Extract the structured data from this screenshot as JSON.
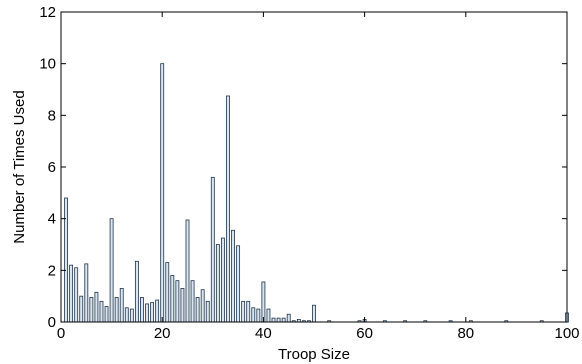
{
  "chart_data": {
    "type": "bar",
    "xlabel": "Troop Size",
    "ylabel": "Number of Times Used",
    "xlim": [
      0,
      100
    ],
    "ylim": [
      0,
      12
    ],
    "xticks": [
      0,
      20,
      40,
      60,
      80,
      100
    ],
    "yticks": [
      0,
      2,
      4,
      6,
      8,
      10,
      12
    ],
    "xtick_labels": [
      "0",
      "20",
      "40",
      "60",
      "80",
      "100"
    ],
    "ytick_labels": [
      "0",
      "2",
      "4",
      "6",
      "8",
      "10",
      "12"
    ],
    "grid": false,
    "bar_fill": "#d9e6f2",
    "bar_stroke": "#1f3348",
    "x": [
      1,
      2,
      3,
      4,
      5,
      6,
      7,
      8,
      9,
      10,
      11,
      12,
      13,
      14,
      15,
      16,
      17,
      18,
      19,
      20,
      21,
      22,
      23,
      24,
      25,
      26,
      27,
      28,
      29,
      30,
      31,
      32,
      33,
      34,
      35,
      36,
      37,
      38,
      39,
      40,
      41,
      42,
      43,
      44,
      45,
      46,
      47,
      48,
      49,
      50,
      51,
      52,
      53,
      54,
      55,
      56,
      57,
      58,
      59,
      60,
      61,
      62,
      63,
      64,
      65,
      66,
      67,
      68,
      69,
      70,
      71,
      72,
      73,
      74,
      75,
      76,
      77,
      78,
      79,
      80,
      81,
      82,
      83,
      84,
      85,
      86,
      87,
      88,
      89,
      90,
      91,
      92,
      93,
      94,
      95,
      96,
      97,
      98,
      99,
      100
    ],
    "values": [
      4.8,
      2.2,
      2.1,
      1.0,
      2.25,
      0.95,
      1.15,
      0.8,
      0.6,
      4.0,
      0.95,
      1.3,
      0.55,
      0.5,
      2.35,
      0.95,
      0.7,
      0.75,
      0.85,
      10.0,
      2.3,
      1.8,
      1.6,
      1.3,
      3.95,
      1.6,
      0.95,
      1.25,
      0.8,
      5.6,
      3.0,
      3.25,
      8.75,
      3.55,
      2.95,
      0.8,
      0.8,
      0.55,
      0.5,
      1.55,
      0.5,
      0.15,
      0.15,
      0.15,
      0.3,
      0.05,
      0.1,
      0.05,
      0.05,
      0.65,
      0.0,
      0.0,
      0.05,
      0.0,
      0.0,
      0.0,
      0.0,
      0.0,
      0.05,
      0.1,
      0.0,
      0.0,
      0.0,
      0.05,
      0.0,
      0.0,
      0.0,
      0.05,
      0.0,
      0.0,
      0.0,
      0.05,
      0.0,
      0.0,
      0.0,
      0.0,
      0.05,
      0.0,
      0.0,
      0.0,
      0.05,
      0.0,
      0.0,
      0.0,
      0.0,
      0.0,
      0.0,
      0.05,
      0.0,
      0.0,
      0.0,
      0.0,
      0.0,
      0.0,
      0.05,
      0.0,
      0.0,
      0.0,
      0.0,
      0.35
    ]
  }
}
